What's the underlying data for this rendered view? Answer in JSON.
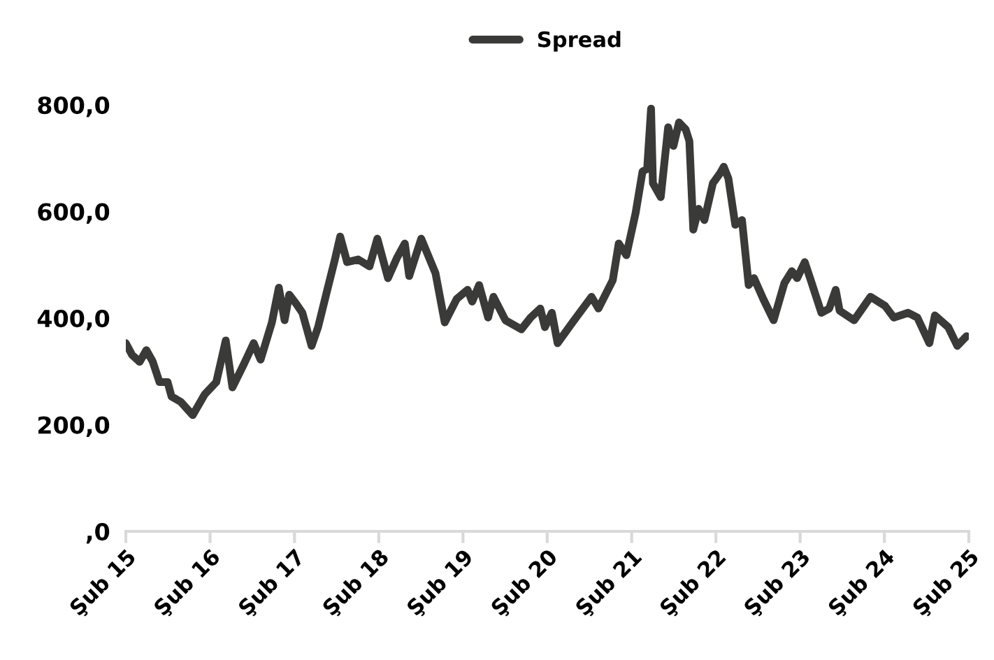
{
  "chart_data": {
    "type": "line",
    "legend": "top",
    "grid": false,
    "x": [
      "2015-02-01",
      "2015-02-28",
      "2015-04-02",
      "2015-05-01",
      "2015-05-28",
      "2015-06-27",
      "2015-08-01",
      "2015-08-18",
      "2015-09-27",
      "2015-11-18",
      "2016-01-09",
      "2016-02-28",
      "2016-04-09",
      "2016-05-08",
      "2016-06-27",
      "2016-08-08",
      "2016-09-07",
      "2016-10-26",
      "2016-11-25",
      "2016-12-20",
      "2017-01-09",
      "2017-02-08",
      "2017-03-07",
      "2017-04-16",
      "2017-05-14",
      "2017-06-23",
      "2017-07-26",
      "2017-08-18",
      "2017-09-17",
      "2017-11-04",
      "2017-12-23",
      "2018-01-26",
      "2018-03-13",
      "2018-04-22",
      "2018-05-25",
      "2018-06-13",
      "2018-08-04",
      "2018-10-05",
      "2018-11-14",
      "2019-01-05",
      "2019-02-21",
      "2019-03-13",
      "2019-04-12",
      "2019-05-21",
      "2019-06-13",
      "2019-08-04",
      "2019-10-12",
      "2019-11-21",
      "2020-01-02",
      "2020-01-22",
      "2020-02-21",
      "2020-03-17",
      "2020-05-21",
      "2020-08-11",
      "2020-09-10",
      "2020-11-11",
      "2020-12-07",
      "2021-01-09",
      "2021-02-18",
      "2021-03-20",
      "2021-04-09",
      "2021-04-26",
      "2021-05-04",
      "2021-06-07",
      "2021-07-09",
      "2021-08-01",
      "2021-08-25",
      "2021-09-23",
      "2021-10-09",
      "2021-10-26",
      "2021-11-18",
      "2021-12-13",
      "2022-01-19",
      "2022-02-18",
      "2022-03-07",
      "2022-03-27",
      "2022-04-26",
      "2022-05-25",
      "2022-06-23",
      "2022-07-16",
      "2022-08-25",
      "2022-10-09",
      "2022-11-25",
      "2022-12-27",
      "2023-01-19",
      "2023-02-21",
      "2023-03-23",
      "2023-05-04",
      "2023-06-07",
      "2023-07-05",
      "2023-07-22",
      "2023-09-23",
      "2023-12-03",
      "2024-02-04",
      "2024-03-13",
      "2024-05-14",
      "2024-06-23",
      "2024-08-14",
      "2024-09-07",
      "2024-11-04",
      "2024-12-13",
      "2025-01-22"
    ],
    "series": [
      {
        "name": "Spread",
        "color": "#3a3a38",
        "values": [
          353,
          331,
          318,
          340,
          319,
          280,
          280,
          253,
          243,
          218,
          257,
          280,
          358,
          270,
          314,
          353,
          322,
          392,
          457,
          396,
          444,
          427,
          410,
          348,
          383,
          453,
          510,
          553,
          505,
          510,
          497,
          549,
          475,
          514,
          540,
          479,
          549,
          484,
          392,
          436,
          453,
          431,
          462,
          401,
          440,
          396,
          379,
          401,
          418,
          383,
          410,
          353,
          392,
          440,
          418,
          471,
          540,
          518,
          597,
          675,
          680,
          793,
          653,
          627,
          758,
          723,
          767,
          754,
          732,
          566,
          605,
          584,
          653,
          671,
          684,
          662,
          575,
          584,
          462,
          475,
          436,
          396,
          466,
          488,
          475,
          505,
          466,
          410,
          418,
          453,
          414,
          396,
          440,
          423,
          401,
          410,
          401,
          353,
          405,
          383,
          348,
          366
        ]
      }
    ],
    "xlim": [
      "2015-02-01",
      "2025-02-01"
    ],
    "xticks": [
      {
        "value": "2015-02-01",
        "label": "Şub 15"
      },
      {
        "value": "2016-02-01",
        "label": "Şub 16"
      },
      {
        "value": "2017-02-01",
        "label": "Şub 17"
      },
      {
        "value": "2018-02-01",
        "label": "Şub 18"
      },
      {
        "value": "2019-02-01",
        "label": "Şub 19"
      },
      {
        "value": "2020-02-01",
        "label": "Şub 20"
      },
      {
        "value": "2021-02-01",
        "label": "Şub 21"
      },
      {
        "value": "2022-02-01",
        "label": "Şub 22"
      },
      {
        "value": "2023-02-01",
        "label": "Şub 23"
      },
      {
        "value": "2024-02-01",
        "label": "Şub 24"
      },
      {
        "value": "2025-02-01",
        "label": "Şub 25"
      }
    ],
    "ylim": [
      0,
      800
    ],
    "yticks": [
      {
        "value": 0,
        "label": ",0"
      },
      {
        "value": 200,
        "label": "200,0"
      },
      {
        "value": 400,
        "label": "400,0"
      },
      {
        "value": 600,
        "label": "600,0"
      },
      {
        "value": 800,
        "label": "800,0"
      }
    ]
  }
}
